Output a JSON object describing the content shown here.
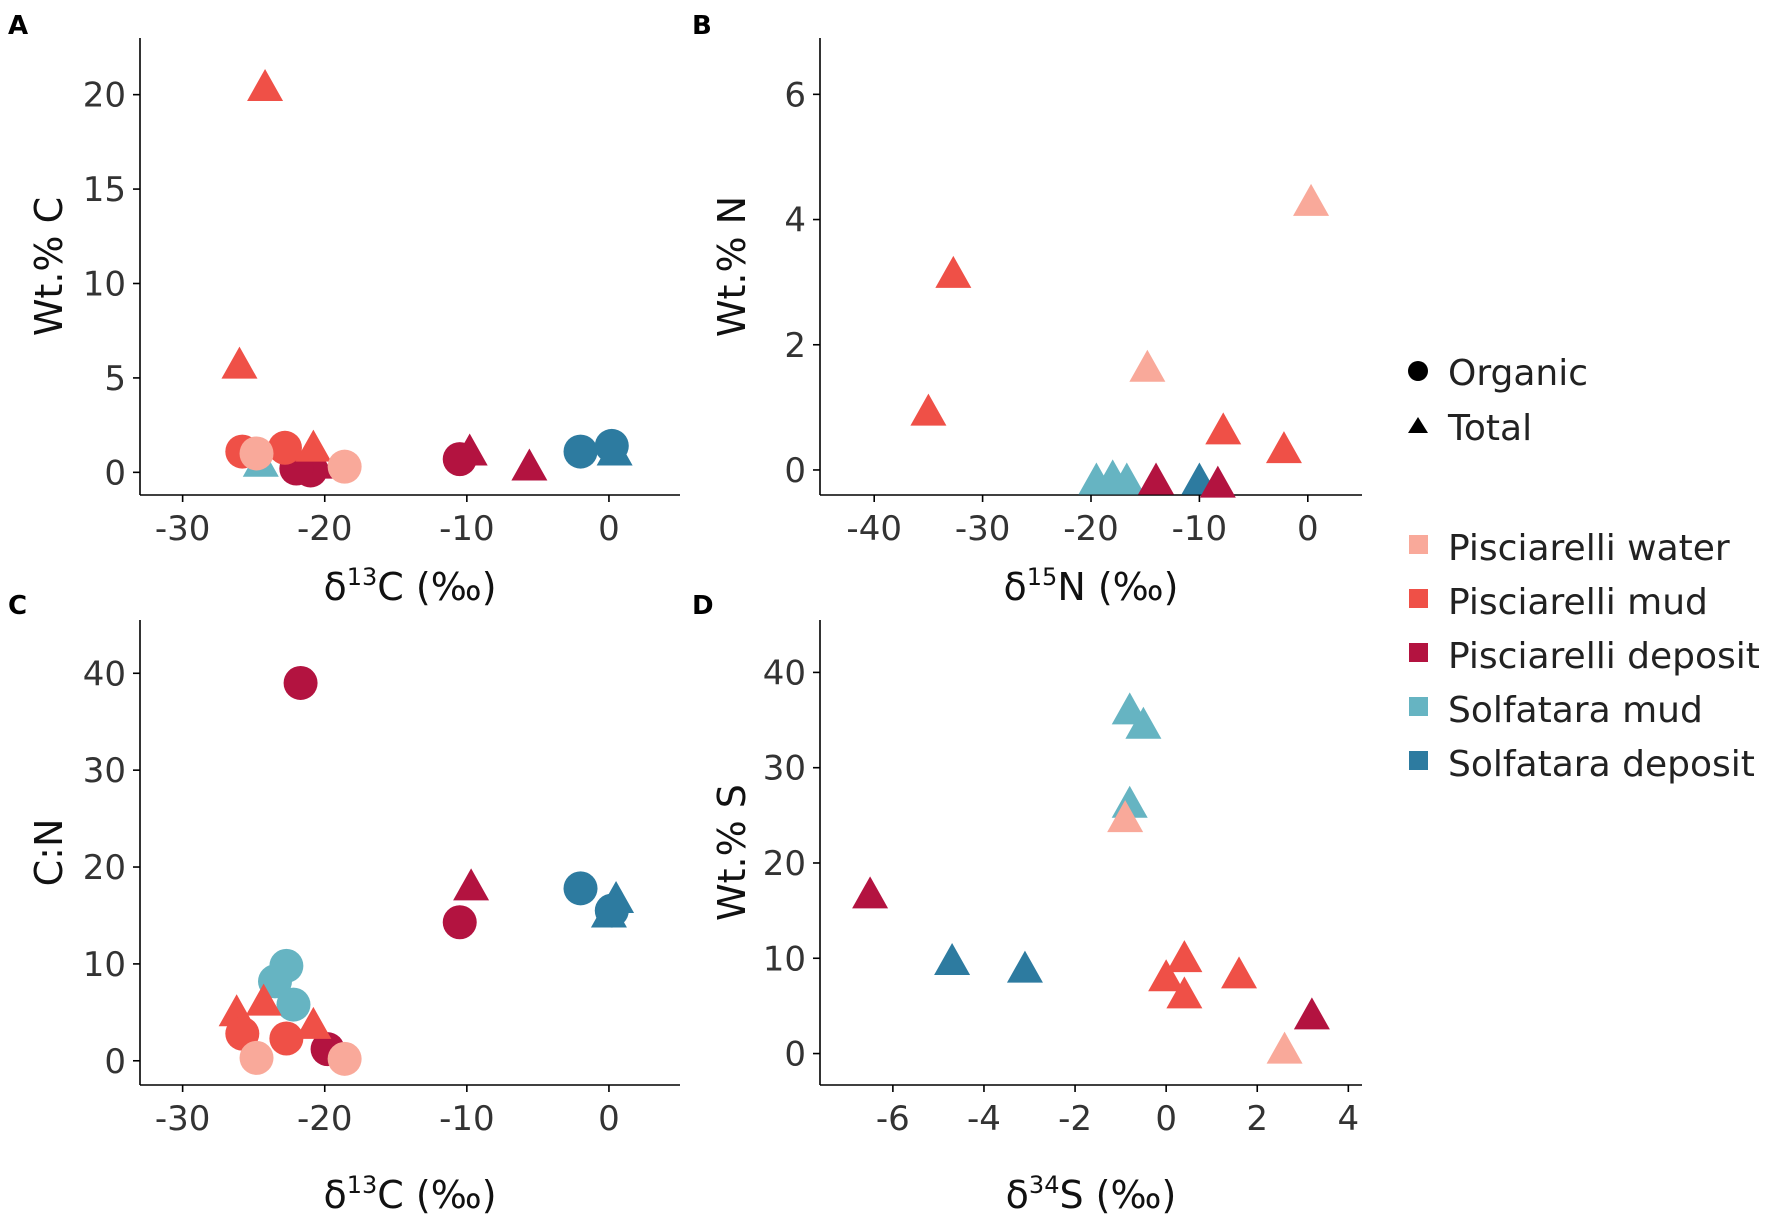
{
  "colors": {
    "Pisciarelli water": "#f9a99a",
    "Pisciarelli mud": "#ef5047",
    "Pisciarelli deposit": "#b31340",
    "Solfatara mud": "#66b4c2",
    "Solfatara deposit": "#2d7ba0"
  },
  "legend": {
    "shapes": [
      {
        "label": "Organic",
        "icon": "circle-icon"
      },
      {
        "label": "Total",
        "icon": "triangle-icon"
      }
    ],
    "groups": [
      "Pisciarelli water",
      "Pisciarelli mud",
      "Pisciarelli deposit",
      "Solfatara mud",
      "Solfatara deposit"
    ]
  },
  "chart_data": [
    {
      "panel": "A",
      "type": "scatter",
      "xlabel": {
        "base": "δ",
        "sup": "13",
        "rest": "C (‰)"
      },
      "ylabel": "Wt.% C",
      "xlim": [
        -33,
        5
      ],
      "ylim": [
        -1.2,
        23
      ],
      "xticks": [
        -30,
        -20,
        -10,
        0
      ],
      "yticks": [
        0,
        5,
        10,
        15,
        20
      ],
      "points": [
        {
          "x": -24.5,
          "y": 0.4,
          "group": "Solfatara mud",
          "shape": "triangle"
        },
        {
          "x": -20.5,
          "y": 0.3,
          "group": "Pisciarelli deposit",
          "shape": "triangle"
        },
        {
          "x": -21.0,
          "y": 0.1,
          "group": "Pisciarelli deposit",
          "shape": "circle"
        },
        {
          "x": -22.0,
          "y": 0.2,
          "group": "Pisciarelli deposit",
          "shape": "circle"
        },
        {
          "x": -24.2,
          "y": 20.3,
          "group": "Pisciarelli mud",
          "shape": "triangle"
        },
        {
          "x": -26.0,
          "y": 5.6,
          "group": "Pisciarelli mud",
          "shape": "triangle"
        },
        {
          "x": -20.8,
          "y": 1.2,
          "group": "Pisciarelli mud",
          "shape": "triangle"
        },
        {
          "x": -25.8,
          "y": 1.1,
          "group": "Pisciarelli mud",
          "shape": "circle"
        },
        {
          "x": -22.8,
          "y": 1.3,
          "group": "Pisciarelli mud",
          "shape": "circle"
        },
        {
          "x": -24.8,
          "y": 1.0,
          "group": "Pisciarelli water",
          "shape": "circle"
        },
        {
          "x": -18.6,
          "y": 0.3,
          "group": "Pisciarelli water",
          "shape": "circle"
        },
        {
          "x": -10.5,
          "y": 0.7,
          "group": "Pisciarelli deposit",
          "shape": "circle"
        },
        {
          "x": -9.8,
          "y": 1.0,
          "group": "Pisciarelli deposit",
          "shape": "triangle"
        },
        {
          "x": -5.6,
          "y": 0.2,
          "group": "Pisciarelli deposit",
          "shape": "triangle"
        },
        {
          "x": 0.4,
          "y": 1.0,
          "group": "Solfatara deposit",
          "shape": "triangle"
        },
        {
          "x": -2.0,
          "y": 1.1,
          "group": "Solfatara deposit",
          "shape": "circle"
        },
        {
          "x": 0.2,
          "y": 1.4,
          "group": "Solfatara deposit",
          "shape": "circle"
        }
      ]
    },
    {
      "panel": "B",
      "type": "scatter",
      "xlabel": {
        "base": "δ",
        "sup": "15",
        "rest": "N (‰)"
      },
      "ylabel": "Wt.% N",
      "xlim": [
        -45,
        5
      ],
      "ylim": [
        -0.4,
        6.9
      ],
      "xticks": [
        -40,
        -30,
        -20,
        -10,
        0
      ],
      "yticks": [
        0,
        2,
        4,
        6
      ],
      "points": [
        {
          "x": -32.7,
          "y": 3.1,
          "group": "Pisciarelli mud",
          "shape": "triangle"
        },
        {
          "x": -35.0,
          "y": 0.9,
          "group": "Pisciarelli mud",
          "shape": "triangle"
        },
        {
          "x": -7.8,
          "y": 0.6,
          "group": "Pisciarelli mud",
          "shape": "triangle"
        },
        {
          "x": -2.2,
          "y": 0.3,
          "group": "Pisciarelli mud",
          "shape": "triangle"
        },
        {
          "x": 0.3,
          "y": 4.25,
          "group": "Pisciarelli water",
          "shape": "triangle"
        },
        {
          "x": -14.8,
          "y": 1.6,
          "group": "Pisciarelli water",
          "shape": "triangle"
        },
        {
          "x": -19.5,
          "y": -0.2,
          "group": "Solfatara mud",
          "shape": "triangle"
        },
        {
          "x": -18.0,
          "y": -0.15,
          "group": "Solfatara mud",
          "shape": "triangle"
        },
        {
          "x": -16.7,
          "y": -0.2,
          "group": "Solfatara mud",
          "shape": "triangle"
        },
        {
          "x": -14.0,
          "y": -0.2,
          "group": "Pisciarelli deposit",
          "shape": "triangle"
        },
        {
          "x": -10.0,
          "y": -0.2,
          "group": "Solfatara deposit",
          "shape": "triangle"
        },
        {
          "x": -8.3,
          "y": -0.25,
          "group": "Pisciarelli deposit",
          "shape": "triangle"
        }
      ]
    },
    {
      "panel": "C",
      "type": "scatter",
      "xlabel": {
        "base": "δ",
        "sup": "13",
        "rest": "C (‰)"
      },
      "ylabel": "C:N",
      "xlim": [
        -33,
        5
      ],
      "ylim": [
        -2.5,
        45.5
      ],
      "xticks": [
        -30,
        -20,
        -10,
        0
      ],
      "yticks": [
        0,
        10,
        20,
        30,
        40
      ],
      "points": [
        {
          "x": -21.7,
          "y": 39.0,
          "group": "Pisciarelli deposit",
          "shape": "circle"
        },
        {
          "x": -10.5,
          "y": 14.3,
          "group": "Pisciarelli deposit",
          "shape": "circle"
        },
        {
          "x": -9.7,
          "y": 17.8,
          "group": "Pisciarelli deposit",
          "shape": "triangle"
        },
        {
          "x": -19.8,
          "y": 1.2,
          "group": "Pisciarelli deposit",
          "shape": "circle"
        },
        {
          "x": -2.0,
          "y": 17.8,
          "group": "Solfatara deposit",
          "shape": "circle"
        },
        {
          "x": 0.5,
          "y": 16.5,
          "group": "Solfatara deposit",
          "shape": "triangle"
        },
        {
          "x": 0.0,
          "y": 15.0,
          "group": "Solfatara deposit",
          "shape": "triangle"
        },
        {
          "x": 0.2,
          "y": 15.5,
          "group": "Solfatara deposit",
          "shape": "circle"
        },
        {
          "x": -22.7,
          "y": 9.8,
          "group": "Solfatara mud",
          "shape": "circle"
        },
        {
          "x": -23.5,
          "y": 8.2,
          "group": "Solfatara mud",
          "shape": "circle"
        },
        {
          "x": -22.2,
          "y": 5.8,
          "group": "Solfatara mud",
          "shape": "circle"
        },
        {
          "x": -26.2,
          "y": 4.8,
          "group": "Pisciarelli mud",
          "shape": "triangle"
        },
        {
          "x": -24.3,
          "y": 5.9,
          "group": "Pisciarelli mud",
          "shape": "triangle"
        },
        {
          "x": -20.8,
          "y": 3.5,
          "group": "Pisciarelli mud",
          "shape": "triangle"
        },
        {
          "x": -25.8,
          "y": 2.8,
          "group": "Pisciarelli mud",
          "shape": "circle"
        },
        {
          "x": -22.7,
          "y": 2.3,
          "group": "Pisciarelli mud",
          "shape": "circle"
        },
        {
          "x": -24.8,
          "y": 0.3,
          "group": "Pisciarelli water",
          "shape": "circle"
        },
        {
          "x": -18.6,
          "y": 0.2,
          "group": "Pisciarelli water",
          "shape": "circle"
        }
      ]
    },
    {
      "panel": "D",
      "type": "scatter",
      "xlabel": {
        "base": "δ",
        "sup": "34",
        "rest": "S (‰)"
      },
      "ylabel": "Wt.% S",
      "xlim": [
        -7.6,
        4.3
      ],
      "ylim": [
        -3.3,
        45.5
      ],
      "xticks": [
        -6,
        -4,
        -2,
        0,
        2,
        4
      ],
      "yticks": [
        0,
        10,
        20,
        30,
        40
      ],
      "points": [
        {
          "x": -0.8,
          "y": 35.8,
          "group": "Solfatara mud",
          "shape": "triangle"
        },
        {
          "x": -0.5,
          "y": 34.3,
          "group": "Solfatara mud",
          "shape": "triangle"
        },
        {
          "x": -0.8,
          "y": 26.0,
          "group": "Solfatara mud",
          "shape": "triangle"
        },
        {
          "x": -0.9,
          "y": 24.5,
          "group": "Pisciarelli water",
          "shape": "triangle"
        },
        {
          "x": 2.6,
          "y": 0.2,
          "group": "Pisciarelli water",
          "shape": "triangle"
        },
        {
          "x": -6.5,
          "y": 16.5,
          "group": "Pisciarelli deposit",
          "shape": "triangle"
        },
        {
          "x": 3.2,
          "y": 3.8,
          "group": "Pisciarelli deposit",
          "shape": "triangle"
        },
        {
          "x": -4.7,
          "y": 9.5,
          "group": "Solfatara deposit",
          "shape": "triangle"
        },
        {
          "x": -3.1,
          "y": 8.7,
          "group": "Solfatara deposit",
          "shape": "triangle"
        },
        {
          "x": 0.4,
          "y": 9.8,
          "group": "Pisciarelli mud",
          "shape": "triangle"
        },
        {
          "x": 0.0,
          "y": 7.8,
          "group": "Pisciarelli mud",
          "shape": "triangle"
        },
        {
          "x": 0.4,
          "y": 6.0,
          "group": "Pisciarelli mud",
          "shape": "triangle"
        },
        {
          "x": 1.6,
          "y": 8.1,
          "group": "Pisciarelli mud",
          "shape": "triangle"
        }
      ]
    }
  ]
}
